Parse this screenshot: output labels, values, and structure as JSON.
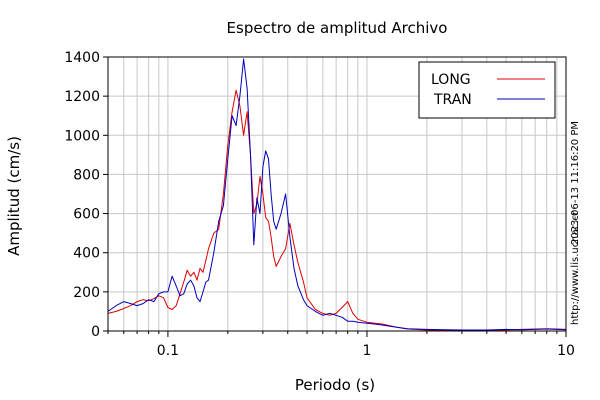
{
  "chart_data": {
    "type": "line",
    "title": "Espectro de amplitud Archivo",
    "xlabel": "Periodo (s)",
    "ylabel": "Amplitud (cm/s)",
    "x_scale": "log",
    "xlim": [
      0.05,
      10
    ],
    "ylim": [
      0,
      1400
    ],
    "grid": true,
    "legend_position": "top-right",
    "x_ticks": [
      {
        "value": 0.1,
        "label": "0.1"
      },
      {
        "value": 1,
        "label": "1"
      },
      {
        "value": 10,
        "label": "10"
      }
    ],
    "y_ticks": [
      {
        "value": 0,
        "label": "0"
      },
      {
        "value": 200,
        "label": "200"
      },
      {
        "value": 400,
        "label": "400"
      },
      {
        "value": 600,
        "label": "600"
      },
      {
        "value": 800,
        "label": "800"
      },
      {
        "value": 1000,
        "label": "1000"
      },
      {
        "value": 1200,
        "label": "1200"
      },
      {
        "value": 1400,
        "label": "1400"
      }
    ],
    "series": [
      {
        "name": "LONG",
        "color": "#dd0000",
        "x": [
          0.05,
          0.055,
          0.06,
          0.065,
          0.07,
          0.075,
          0.08,
          0.085,
          0.09,
          0.095,
          0.1,
          0.105,
          0.11,
          0.115,
          0.12,
          0.125,
          0.13,
          0.135,
          0.14,
          0.145,
          0.15,
          0.155,
          0.16,
          0.17,
          0.18,
          0.19,
          0.2,
          0.21,
          0.22,
          0.23,
          0.24,
          0.25,
          0.26,
          0.27,
          0.28,
          0.29,
          0.3,
          0.31,
          0.32,
          0.33,
          0.34,
          0.35,
          0.37,
          0.39,
          0.41,
          0.43,
          0.45,
          0.48,
          0.5,
          0.55,
          0.6,
          0.65,
          0.7,
          0.75,
          0.8,
          0.85,
          0.9,
          1.0,
          1.1,
          1.2,
          1.4,
          1.6,
          2.0,
          2.5,
          3.0,
          4.0,
          5.0,
          6.0,
          7.0,
          8.0,
          9.0,
          10.0
        ],
        "y": [
          90,
          100,
          115,
          130,
          150,
          160,
          155,
          165,
          180,
          170,
          120,
          110,
          130,
          190,
          250,
          310,
          280,
          300,
          260,
          320,
          300,
          360,
          420,
          500,
          520,
          700,
          950,
          1120,
          1230,
          1150,
          1000,
          1120,
          900,
          600,
          650,
          790,
          700,
          580,
          560,
          480,
          380,
          330,
          380,
          420,
          550,
          440,
          350,
          250,
          170,
          110,
          90,
          80,
          90,
          120,
          150,
          90,
          60,
          45,
          40,
          35,
          20,
          10,
          5,
          5,
          5,
          5,
          5,
          8,
          10,
          12,
          10,
          8
        ]
      },
      {
        "name": "TRAN",
        "color": "#0000bb",
        "x": [
          0.05,
          0.055,
          0.06,
          0.065,
          0.07,
          0.075,
          0.08,
          0.085,
          0.09,
          0.095,
          0.1,
          0.105,
          0.11,
          0.115,
          0.12,
          0.125,
          0.13,
          0.135,
          0.14,
          0.145,
          0.15,
          0.155,
          0.16,
          0.17,
          0.18,
          0.19,
          0.2,
          0.21,
          0.22,
          0.23,
          0.24,
          0.25,
          0.26,
          0.27,
          0.28,
          0.29,
          0.3,
          0.31,
          0.32,
          0.33,
          0.34,
          0.35,
          0.37,
          0.39,
          0.41,
          0.43,
          0.45,
          0.48,
          0.5,
          0.55,
          0.6,
          0.65,
          0.7,
          0.75,
          0.8,
          0.85,
          0.9,
          1.0,
          1.1,
          1.2,
          1.4,
          1.6,
          2.0,
          2.5,
          3.0,
          4.0,
          5.0,
          6.0,
          7.0,
          8.0,
          9.0,
          10.0
        ],
        "y": [
          100,
          130,
          150,
          140,
          130,
          140,
          160,
          150,
          190,
          200,
          200,
          280,
          230,
          180,
          190,
          240,
          260,
          230,
          170,
          150,
          200,
          250,
          260,
          400,
          560,
          640,
          880,
          1100,
          1050,
          1200,
          1390,
          1240,
          900,
          440,
          680,
          600,
          840,
          920,
          880,
          700,
          560,
          520,
          600,
          700,
          480,
          320,
          230,
          160,
          130,
          100,
          80,
          90,
          80,
          70,
          50,
          50,
          45,
          40,
          35,
          30,
          20,
          12,
          8,
          6,
          5,
          5,
          8,
          6,
          8,
          10,
          8,
          6
        ]
      }
    ]
  },
  "side_text_right": "2023-06-13 11:16:20 PM",
  "side_text_url": "http://www.lis.ucr.ac.cr"
}
